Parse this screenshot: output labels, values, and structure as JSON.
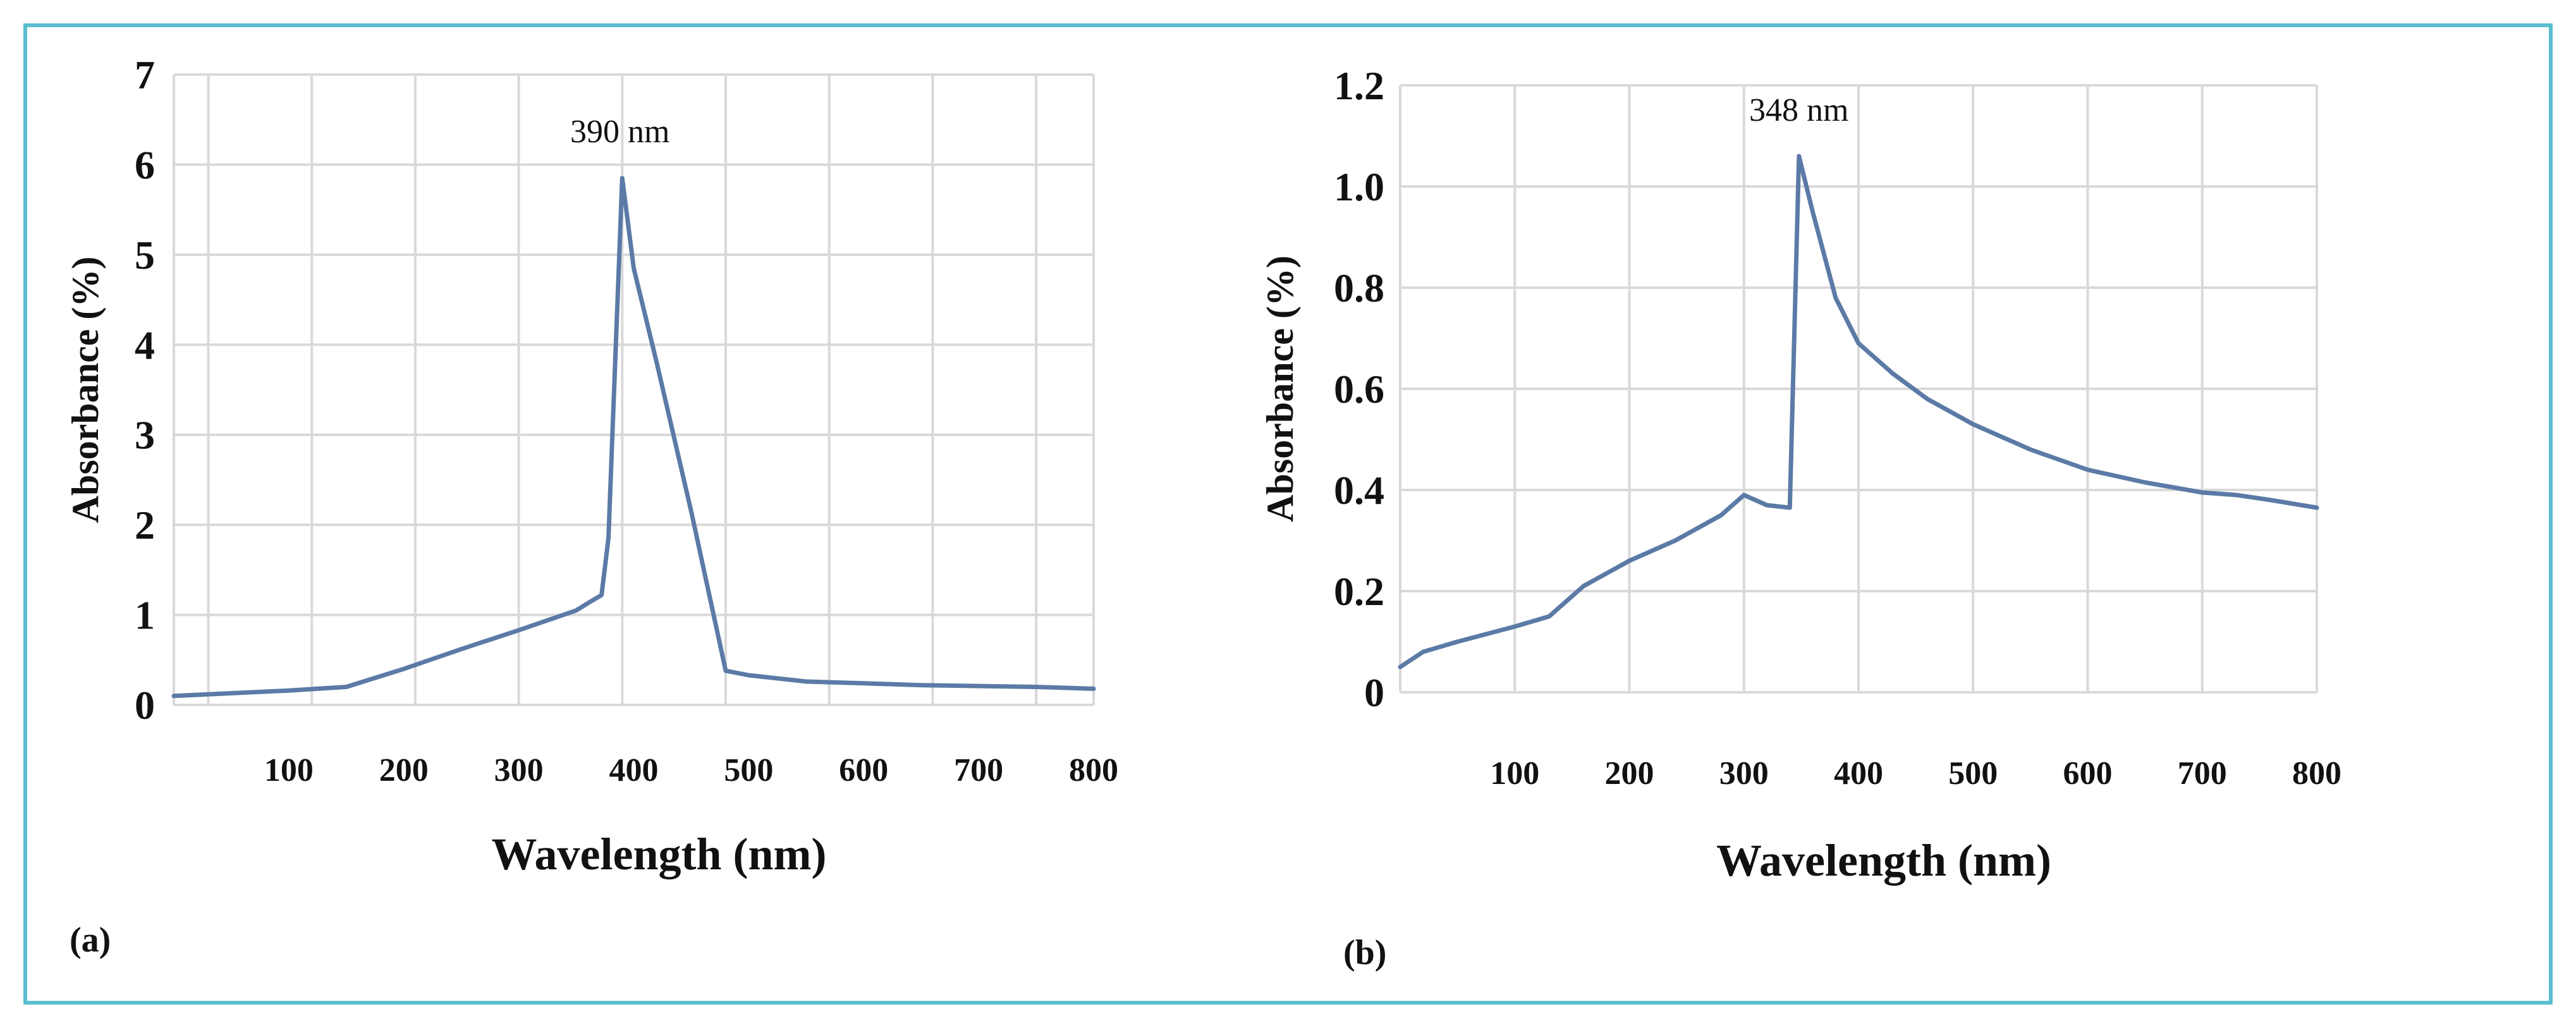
{
  "colors": {
    "frame_border": "#5bbfcf",
    "grid": "#d9d9d9",
    "line": "#5b7aa6",
    "text": "#111111"
  },
  "chart_data": [
    {
      "panel_label": "(a)",
      "type": "line",
      "xlabel": "Wavelength (nm)",
      "ylabel": "Absorbance (%)",
      "xlim": [
        0,
        800
      ],
      "ylim": [
        0,
        7
      ],
      "x_ticks": [
        100,
        200,
        300,
        400,
        500,
        600,
        700,
        800
      ],
      "x_tick_labels": [
        "100",
        "200",
        "300",
        "400",
        "500",
        "600",
        "700",
        "800"
      ],
      "y_ticks": [
        0,
        1,
        2,
        3,
        4,
        5,
        6,
        7
      ],
      "y_tick_labels": [
        "0",
        "1",
        "2",
        "3",
        "4",
        "5",
        "6",
        "7"
      ],
      "x_grid": [
        30,
        120,
        210,
        300,
        390,
        480,
        570,
        660,
        750
      ],
      "annotation": {
        "text": "390 nm",
        "x": 388,
        "y": 6.25
      },
      "x": [
        0,
        50,
        100,
        150,
        200,
        250,
        300,
        350,
        360,
        372,
        378,
        390,
        400,
        420,
        450,
        480,
        500,
        550,
        600,
        650,
        700,
        750,
        800
      ],
      "y": [
        0.1,
        0.13,
        0.16,
        0.2,
        0.4,
        0.62,
        0.83,
        1.05,
        1.13,
        1.22,
        1.85,
        5.85,
        4.85,
        3.8,
        2.15,
        0.38,
        0.33,
        0.26,
        0.24,
        0.22,
        0.21,
        0.2,
        0.18
      ]
    },
    {
      "panel_label": "(b)",
      "type": "line",
      "xlabel": "Wavelength (nm)",
      "ylabel": "Absorbance (%)",
      "xlim": [
        0,
        800
      ],
      "ylim": [
        0,
        1.2
      ],
      "x_ticks": [
        100,
        200,
        300,
        400,
        500,
        600,
        700,
        800
      ],
      "x_tick_labels": [
        "100",
        "200",
        "300",
        "400",
        "500",
        "600",
        "700",
        "800"
      ],
      "y_ticks": [
        0,
        0.2,
        0.4,
        0.6,
        0.8,
        1.0,
        1.2
      ],
      "y_tick_labels": [
        "0",
        "0.2",
        "0.4",
        "0.6",
        "0.8",
        "1.0",
        "1.2"
      ],
      "x_grid": [
        100,
        200,
        300,
        400,
        500,
        600,
        700
      ],
      "annotation": {
        "text": "348 nm",
        "x": 348,
        "y": 1.13
      },
      "x": [
        0,
        20,
        50,
        100,
        130,
        160,
        200,
        240,
        280,
        300,
        310,
        320,
        340,
        348,
        360,
        380,
        400,
        430,
        460,
        500,
        550,
        600,
        650,
        700,
        730,
        760,
        800
      ],
      "y": [
        0.05,
        0.08,
        0.1,
        0.13,
        0.15,
        0.21,
        0.26,
        0.3,
        0.35,
        0.39,
        0.38,
        0.37,
        0.365,
        1.06,
        0.95,
        0.78,
        0.69,
        0.63,
        0.58,
        0.53,
        0.48,
        0.44,
        0.415,
        0.395,
        0.39,
        0.38,
        0.365
      ]
    }
  ]
}
